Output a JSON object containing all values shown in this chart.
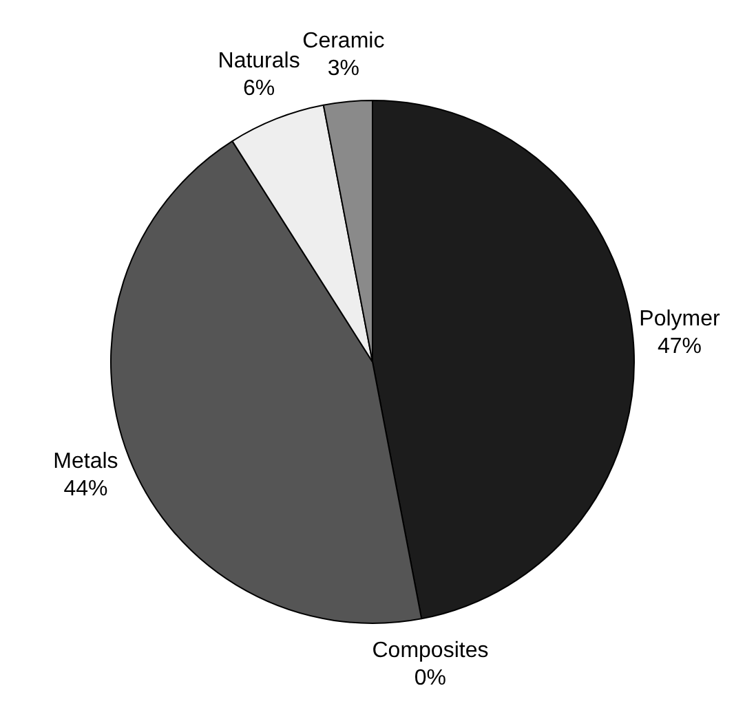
{
  "chart_data": {
    "type": "pie",
    "categories": [
      "Polymer",
      "Composites",
      "Metals",
      "Naturals",
      "Ceramic"
    ],
    "values": [
      47,
      0,
      44,
      6,
      3
    ],
    "value_labels": [
      "47%",
      "0%",
      "44%",
      "6%",
      "3%"
    ],
    "colors": [
      "#1c1c1c",
      "#3a3a3a",
      "#555555",
      "#eeeeee",
      "#8a8a8a"
    ],
    "legend": false
  }
}
